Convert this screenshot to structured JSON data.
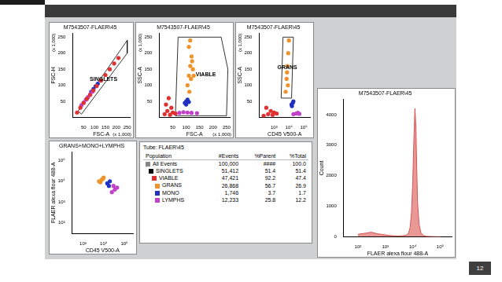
{
  "slide_number": "12",
  "chart_data": [
    {
      "type": "scatter",
      "title": "M7543507-FLAER\\45",
      "x_label": "FSC-A",
      "y_label": "FSC-H",
      "xlim": [
        0,
        262
      ],
      "ylim": [
        0,
        262
      ],
      "xticks": [
        50,
        100,
        150,
        200,
        250
      ],
      "yticks": [
        50,
        100,
        150,
        200,
        250
      ],
      "grid": false,
      "annotations": [
        {
          "text": "(x 1,000)",
          "axis": "x"
        },
        {
          "text": "(x 1,000)",
          "axis": "y"
        }
      ],
      "series": [
        {
          "name": "VIABLE",
          "color": "#e03030",
          "x": [
            20,
            35,
            50,
            65,
            80,
            95,
            110,
            130,
            150,
            170,
            190,
            210
          ],
          "y": [
            15,
            30,
            45,
            58,
            70,
            84,
            98,
            115,
            132,
            150,
            168,
            185
          ]
        },
        {
          "name": "LYMPHS",
          "color": "#c040c8",
          "x": [
            40,
            50,
            60,
            70,
            80,
            90
          ],
          "y": [
            38,
            46,
            55,
            63,
            72,
            80
          ]
        },
        {
          "name": "MONO",
          "color": "#2030c0",
          "x": [
            85,
            95,
            105,
            115
          ],
          "y": [
            80,
            88,
            97,
            105
          ]
        }
      ],
      "gates": [
        {
          "name": "SINGLETS",
          "x": [
            25,
            250,
            250,
            40
          ],
          "y": [
            20,
            240,
            200,
            10
          ]
        }
      ]
    },
    {
      "type": "scatter",
      "title": "M7543507-FLAER\\45",
      "x_label": "FSC-A",
      "y_label": "SSC-A",
      "xlim": [
        0,
        262
      ],
      "ylim": [
        0,
        262
      ],
      "xticks": [
        50,
        100,
        150,
        200,
        250
      ],
      "yticks": [
        50,
        100,
        150,
        200,
        250
      ],
      "grid": false,
      "annotations": [
        {
          "text": "(x 1,000)",
          "axis": "x"
        },
        {
          "text": "(x 1,000)",
          "axis": "y"
        }
      ],
      "series": [
        {
          "name": "VIABLE",
          "color": "#e03030",
          "x": [
            20,
            30,
            40,
            50,
            25,
            35,
            45,
            60
          ],
          "y": [
            10,
            20,
            8,
            15,
            40,
            60,
            30,
            12
          ]
        },
        {
          "name": "GRANS",
          "color": "#f0922a",
          "x": [
            105,
            110,
            115,
            120,
            125,
            110,
            118,
            122,
            115,
            112,
            128
          ],
          "y": [
            100,
            130,
            160,
            190,
            150,
            220,
            120,
            175,
            240,
            80,
            130
          ]
        },
        {
          "name": "MONO",
          "color": "#2030c0",
          "x": [
            95,
            100,
            105,
            110,
            100
          ],
          "y": [
            45,
            50,
            55,
            48,
            40
          ]
        },
        {
          "name": "LYMPHS",
          "color": "#c040c8",
          "x": [
            60,
            75,
            90,
            105,
            120,
            140
          ],
          "y": [
            12,
            14,
            16,
            15,
            14,
            13
          ]
        }
      ],
      "gates": [
        {
          "name": "VIABLE",
          "x": [
            60,
            70,
            230,
            255,
            250
          ],
          "y": [
            5,
            250,
            250,
            150,
            5
          ]
        }
      ]
    },
    {
      "type": "scatter",
      "title": "M7543507-FLAER\\45",
      "x_label": "CD45 V500-A",
      "y_label": "SSC-A",
      "log": "x",
      "xlim": [
        100,
        262144
      ],
      "ylim": [
        0,
        262
      ],
      "xticks": [
        {
          "value": 1000,
          "label": "10³"
        },
        {
          "value": 10000,
          "label": "10⁴"
        },
        {
          "value": 100000,
          "label": "10⁵"
        }
      ],
      "yticks": [
        50,
        100,
        150,
        200,
        250
      ],
      "grid": false,
      "annotations": [
        {
          "text": "(x 1,000)",
          "axis": "y"
        }
      ],
      "series": [
        {
          "name": "VIABLE",
          "color": "#e03030",
          "x": [
            200,
            400,
            800,
            1500,
            300,
            600,
            1000
          ],
          "y": [
            5,
            10,
            8,
            12,
            30,
            20,
            15
          ]
        },
        {
          "name": "GRANS",
          "color": "#f0922a",
          "x": [
            6000,
            7000,
            8000,
            9000,
            10000,
            7500,
            8500
          ],
          "y": [
            80,
            120,
            160,
            200,
            240,
            140,
            100
          ]
        },
        {
          "name": "MONO",
          "color": "#2030c0",
          "x": [
            15000,
            18000,
            20000,
            16000
          ],
          "y": [
            40,
            45,
            50,
            35
          ]
        },
        {
          "name": "LYMPHS",
          "color": "#c040c8",
          "x": [
            20000,
            30000,
            40000,
            50000
          ],
          "y": [
            10,
            12,
            14,
            11
          ]
        }
      ],
      "gates": [
        {
          "name": "GRANS",
          "x": [
            3000,
            4000,
            20000,
            15000
          ],
          "y": [
            60,
            250,
            250,
            60
          ]
        }
      ]
    },
    {
      "type": "area",
      "title": "M7543507-FLAER\\45",
      "x_label": "FLAER alexa flour 488-A",
      "y_label": "Count",
      "log": "x",
      "xlim": [
        30,
        262144
      ],
      "ylim": [
        0,
        4500
      ],
      "xticks": [
        {
          "value": 100,
          "label": "10²"
        },
        {
          "value": 1000,
          "label": "10³"
        },
        {
          "value": 10000,
          "label": "10⁴"
        },
        {
          "value": 100000,
          "label": "10⁵"
        }
      ],
      "yticks": [
        0,
        1000,
        2000,
        3000,
        4000
      ],
      "grid": false,
      "color": "#d9534f",
      "x": [
        100,
        200,
        300,
        500,
        700,
        1000,
        1500,
        2000,
        3000,
        4000,
        5000,
        6000,
        7000,
        8000,
        9000,
        10000,
        11000,
        12000,
        13000,
        14000,
        15000,
        17000,
        20000,
        25000,
        30000,
        50000,
        100000
      ],
      "values": [
        80,
        120,
        150,
        100,
        80,
        60,
        40,
        30,
        25,
        30,
        40,
        60,
        120,
        300,
        800,
        1800,
        3200,
        4200,
        3600,
        2200,
        1100,
        400,
        120,
        40,
        15,
        5,
        0
      ]
    },
    {
      "type": "scatter",
      "title": "GRANS+MONO+LYMPHS",
      "x_label": "CD45 V500-A",
      "y_label": "FLAER alexa flour 488-A",
      "log": true,
      "xlim": [
        300,
        262144
      ],
      "ylim": [
        30,
        262144
      ],
      "xticks": [
        {
          "value": 1000,
          "label": "10³"
        },
        {
          "value": 10000,
          "label": "10⁴"
        },
        {
          "value": 100000,
          "label": "10⁵"
        }
      ],
      "yticks": [
        {
          "value": 100,
          "label": "10²"
        },
        {
          "value": 1000,
          "label": "10³"
        },
        {
          "value": 10000,
          "label": "10⁴"
        },
        {
          "value": 100000,
          "label": "10⁵"
        }
      ],
      "grid": false,
      "series": [
        {
          "name": "GRANS",
          "color": "#f0922a",
          "x": [
            6000,
            8000,
            10000,
            7000,
            9000
          ],
          "y": [
            10000,
            12000,
            15000,
            9000,
            13000
          ]
        },
        {
          "name": "MONO",
          "color": "#2030c0",
          "x": [
            15000,
            20000,
            18000
          ],
          "y": [
            8000,
            10000,
            6000
          ]
        },
        {
          "name": "LYMPHS",
          "color": "#c040c8",
          "x": [
            25000,
            35000,
            45000,
            30000
          ],
          "y": [
            3000,
            4000,
            5000,
            6000
          ]
        }
      ]
    }
  ],
  "table": {
    "title": "Tube: FLAER\\45",
    "columns": [
      "Population",
      "#Events",
      "%Parent",
      "%Total"
    ],
    "rows": [
      {
        "name": "All Events",
        "color": "#888888",
        "cells": [
          "100,000",
          "####",
          "100.0"
        ]
      },
      {
        "name": "SINGLETS",
        "color": "#000000",
        "cells": [
          "51,412",
          "51.4",
          "51.4"
        ]
      },
      {
        "name": "VIABLE",
        "color": "#e03030",
        "cells": [
          "47,421",
          "92.2",
          "47.4"
        ]
      },
      {
        "name": "GRANS",
        "color": "#f0922a",
        "cells": [
          "26,868",
          "56.7",
          "26.9"
        ]
      },
      {
        "name": "MONO",
        "color": "#2030c0",
        "cells": [
          "1,746",
          "3.7",
          "1.7"
        ]
      },
      {
        "name": "LYMPHS",
        "color": "#c040c8",
        "cells": [
          "12,233",
          "25.8",
          "12.2"
        ]
      }
    ]
  }
}
